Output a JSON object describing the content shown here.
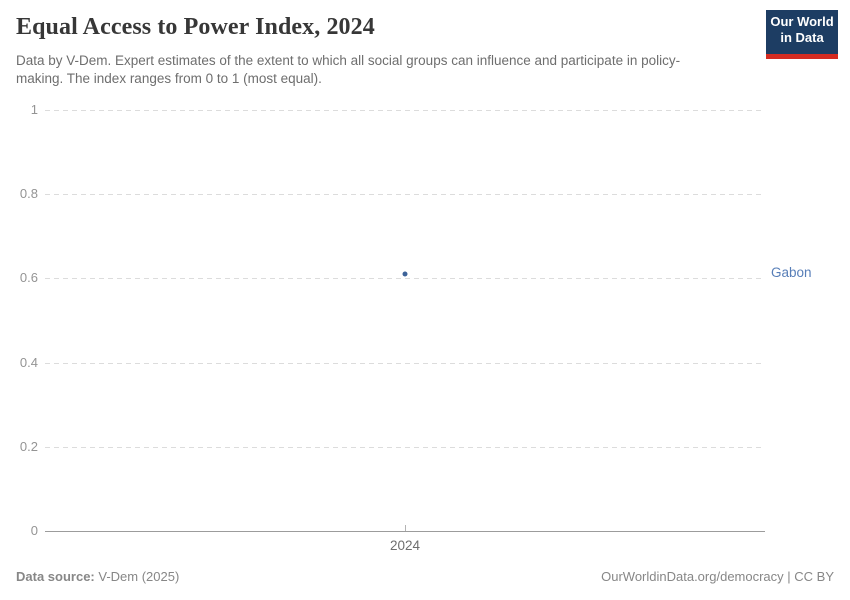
{
  "header": {
    "title": "Equal Access to Power Index, 2024",
    "subtitle": "Data by V-Dem. Expert estimates of the extent to which all social groups can influence and participate in policy-making. The index ranges from 0 to 1 (most equal).",
    "logo": {
      "line1": "Our World",
      "line2": "in Data"
    }
  },
  "chart_data": {
    "type": "scatter",
    "title": "Equal Access to Power Index, 2024",
    "x": [
      2024
    ],
    "xtick_labels": [
      "2024"
    ],
    "series": [
      {
        "name": "Gabon",
        "values": [
          0.61
        ]
      }
    ],
    "ylim": [
      0,
      1
    ],
    "yticks": [
      0,
      0.2,
      0.4,
      0.6,
      0.8,
      1
    ],
    "ytick_labels": [
      "0",
      "0.2",
      "0.4",
      "0.6",
      "0.8",
      "1"
    ],
    "grid": "horizontal dashed, solid zero line",
    "legend_position": "entity label at right edge of plot"
  },
  "footer": {
    "datasource_label": "Data source:",
    "datasource_value": "V-Dem (2025)",
    "attribution": "OurWorldinData.org/democracy | CC BY"
  },
  "colors": {
    "point": "#3d6399",
    "entity_label": "#577eb8",
    "logo_bg": "#1d3d63",
    "logo_bar": "#d42b21",
    "gridline": "#dcdcdc",
    "axis_line": "#9c9c9c"
  }
}
